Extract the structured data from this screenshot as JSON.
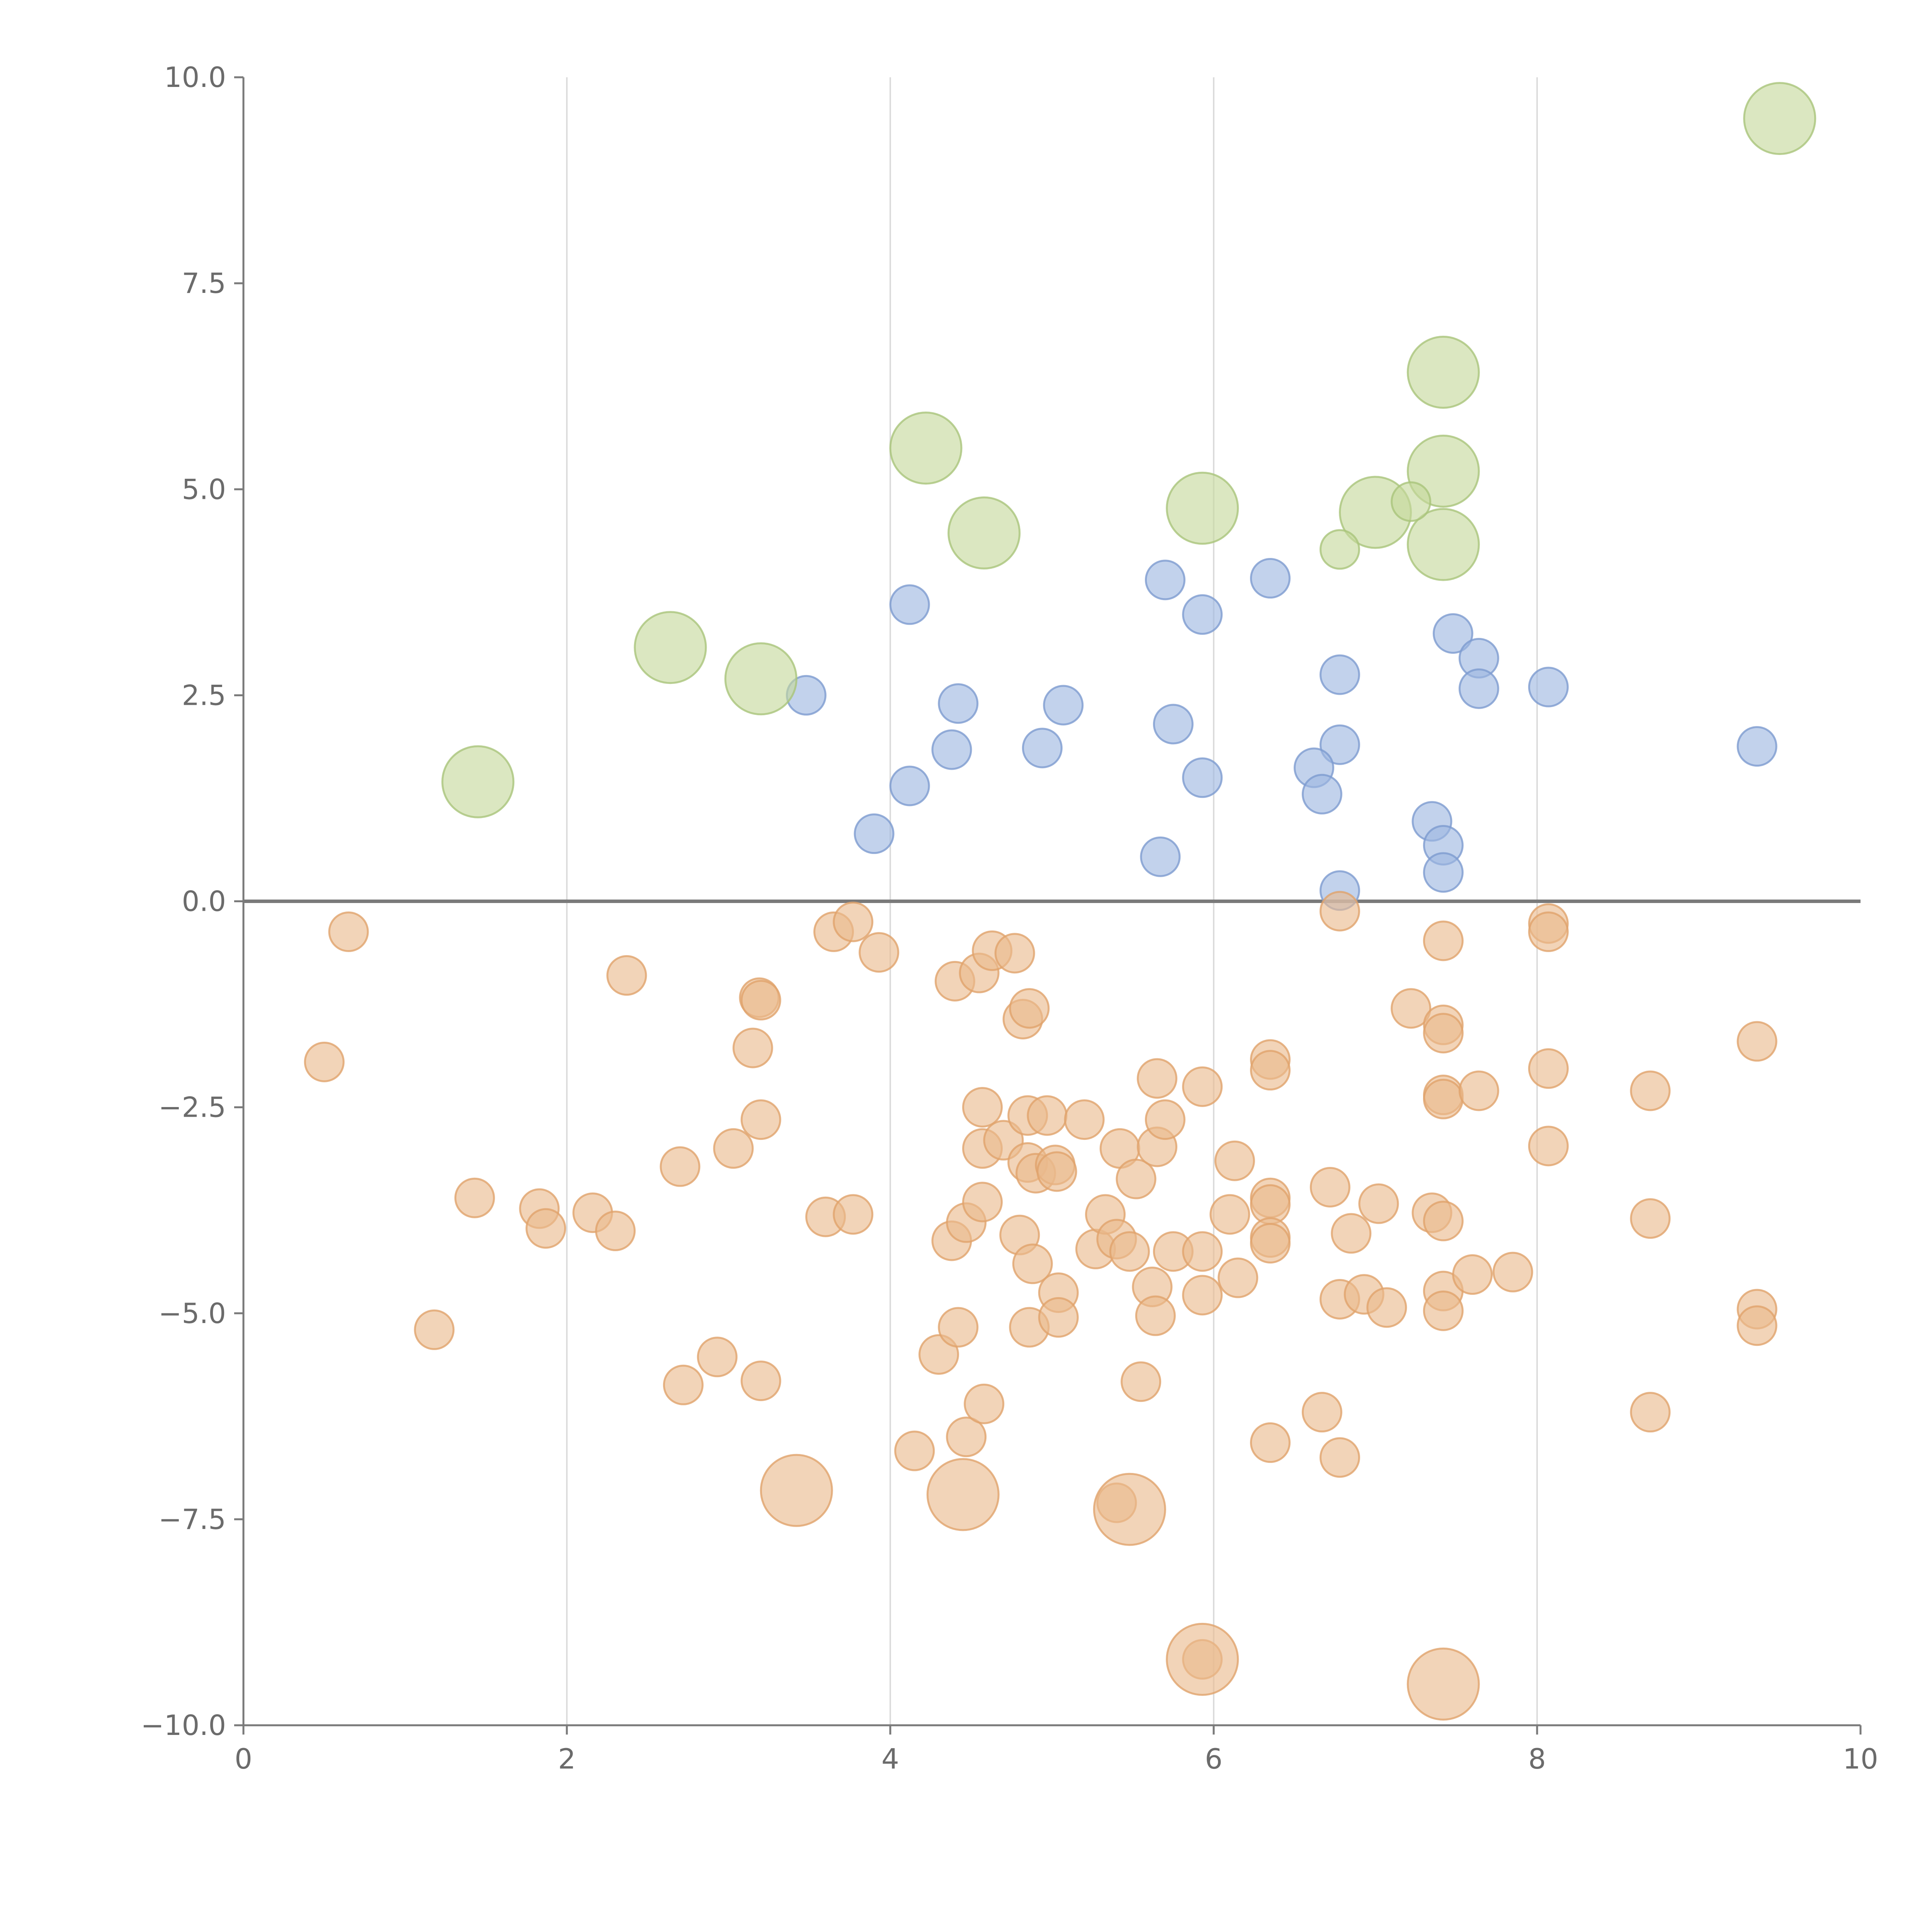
{
  "chart_data": {
    "type": "scatter",
    "title": "",
    "xlabel": "",
    "ylabel": "",
    "xlim": [
      0,
      10
    ],
    "ylim": [
      -10,
      10
    ],
    "x_ticks": [
      "0",
      "2",
      "4",
      "6",
      "8",
      "10"
    ],
    "y_ticks": [
      "−10.0",
      "−7.5",
      "−5.0",
      "−2.5",
      "0.0",
      "2.5",
      "5.0",
      "7.5",
      "10.0"
    ],
    "x_gridlines": [
      2,
      4,
      6,
      8
    ],
    "reference_line_y": 0,
    "legend": "none",
    "series": [
      {
        "color": "#9db7e0",
        "stroke": "#7d9bcf",
        "size": "small",
        "points": [
          [
            3.48,
            2.5
          ],
          [
            4.12,
            3.6
          ],
          [
            4.42,
            2.4
          ],
          [
            4.38,
            1.84
          ],
          [
            4.12,
            1.4
          ],
          [
            3.9,
            0.82
          ],
          [
            5.07,
            2.38
          ],
          [
            4.94,
            1.86
          ],
          [
            5.7,
            3.9
          ],
          [
            5.93,
            3.48
          ],
          [
            6.35,
            3.92
          ],
          [
            5.75,
            2.15
          ],
          [
            5.93,
            1.5
          ],
          [
            5.67,
            0.54
          ],
          [
            6.78,
            2.75
          ],
          [
            6.78,
            1.9
          ],
          [
            6.62,
            1.62
          ],
          [
            6.67,
            1.3
          ],
          [
            6.78,
            0.13
          ],
          [
            7.48,
            3.25
          ],
          [
            7.64,
            2.95
          ],
          [
            7.64,
            2.58
          ],
          [
            8.07,
            2.6
          ],
          [
            7.35,
            0.97
          ],
          [
            7.42,
            0.68
          ],
          [
            7.42,
            0.35
          ],
          [
            9.36,
            1.88
          ]
        ]
      },
      {
        "color": "#c5d99b",
        "stroke": "#a9c47a",
        "size": "large",
        "points": [
          [
            1.45,
            1.45
          ],
          [
            2.64,
            3.08
          ],
          [
            3.2,
            2.7
          ],
          [
            4.22,
            5.5
          ],
          [
            4.58,
            4.47
          ],
          [
            5.93,
            4.77
          ],
          [
            7.0,
            4.72
          ],
          [
            7.42,
            6.42
          ],
          [
            7.42,
            5.22
          ],
          [
            7.42,
            4.33
          ],
          [
            9.5,
            9.5
          ]
        ]
      },
      {
        "color": "#c5d99b",
        "stroke": "#a9c47a",
        "size": "small",
        "points": [
          [
            6.78,
            4.27
          ],
          [
            7.22,
            4.85
          ]
        ]
      },
      {
        "color": "#eab98d",
        "stroke": "#e0a26c",
        "size": "small",
        "points": [
          [
            0.65,
            -0.37
          ],
          [
            0.5,
            -1.95
          ],
          [
            1.18,
            -5.2
          ],
          [
            1.43,
            -3.6
          ],
          [
            1.83,
            -3.73
          ],
          [
            1.87,
            -3.97
          ],
          [
            2.16,
            -3.78
          ],
          [
            2.3,
            -4.0
          ],
          [
            2.37,
            -0.9
          ],
          [
            2.7,
            -3.22
          ],
          [
            2.72,
            -5.87
          ],
          [
            2.93,
            -5.53
          ],
          [
            3.03,
            -3.0
          ],
          [
            3.15,
            -1.78
          ],
          [
            3.19,
            -1.17
          ],
          [
            3.2,
            -1.2
          ],
          [
            3.2,
            -2.65
          ],
          [
            3.2,
            -5.82
          ],
          [
            3.6,
            -3.83
          ],
          [
            3.65,
            -0.37
          ],
          [
            3.77,
            -0.25
          ],
          [
            3.77,
            -3.8
          ],
          [
            3.93,
            -0.62
          ],
          [
            4.15,
            -6.67
          ],
          [
            4.3,
            -5.5
          ],
          [
            4.38,
            -4.12
          ],
          [
            4.4,
            -0.97
          ],
          [
            4.42,
            -5.17
          ],
          [
            4.47,
            -3.9
          ],
          [
            4.47,
            -6.5
          ],
          [
            4.55,
            -0.87
          ],
          [
            4.57,
            -2.5
          ],
          [
            4.57,
            -3.0
          ],
          [
            4.57,
            -3.65
          ],
          [
            4.58,
            -6.1
          ],
          [
            4.63,
            -0.6
          ],
          [
            4.7,
            -2.9
          ],
          [
            4.77,
            -0.63
          ],
          [
            4.8,
            -4.05
          ],
          [
            4.82,
            -1.43
          ],
          [
            4.85,
            -2.6
          ],
          [
            4.85,
            -3.17
          ],
          [
            4.86,
            -1.3
          ],
          [
            4.86,
            -5.17
          ],
          [
            4.88,
            -4.4
          ],
          [
            4.9,
            -3.3
          ],
          [
            4.97,
            -2.6
          ],
          [
            5.02,
            -3.2
          ],
          [
            5.03,
            -3.28
          ],
          [
            5.04,
            -4.75
          ],
          [
            5.04,
            -5.05
          ],
          [
            5.2,
            -2.65
          ],
          [
            5.27,
            -4.22
          ],
          [
            5.33,
            -3.8
          ],
          [
            5.4,
            -4.1
          ],
          [
            5.42,
            -3.0
          ],
          [
            5.48,
            -4.25
          ],
          [
            5.52,
            -3.37
          ],
          [
            5.55,
            -5.83
          ],
          [
            5.62,
            -4.68
          ],
          [
            5.65,
            -2.15
          ],
          [
            5.64,
            -5.03
          ],
          [
            5.65,
            -2.98
          ],
          [
            5.7,
            -2.65
          ],
          [
            5.75,
            -4.25
          ],
          [
            5.93,
            -2.25
          ],
          [
            5.93,
            -4.25
          ],
          [
            5.93,
            -4.78
          ],
          [
            6.1,
            -3.8
          ],
          [
            6.13,
            -3.15
          ],
          [
            6.15,
            -4.57
          ],
          [
            6.35,
            -1.92
          ],
          [
            6.35,
            -2.05
          ],
          [
            6.35,
            -3.6
          ],
          [
            6.35,
            -3.68
          ],
          [
            6.35,
            -4.08
          ],
          [
            6.35,
            -4.15
          ],
          [
            6.35,
            -6.57
          ],
          [
            6.67,
            -6.2
          ],
          [
            6.72,
            -3.47
          ],
          [
            6.78,
            -0.12
          ],
          [
            6.78,
            -4.83
          ],
          [
            6.78,
            -6.75
          ],
          [
            6.85,
            -4.03
          ],
          [
            6.93,
            -4.77
          ],
          [
            7.02,
            -3.67
          ],
          [
            7.07,
            -4.93
          ],
          [
            7.22,
            -1.3
          ],
          [
            7.35,
            -3.78
          ],
          [
            7.42,
            -0.48
          ],
          [
            7.42,
            -1.5
          ],
          [
            7.42,
            -1.6
          ],
          [
            7.42,
            -2.35
          ],
          [
            7.42,
            -2.4
          ],
          [
            7.42,
            -3.88
          ],
          [
            7.42,
            -4.73
          ],
          [
            7.42,
            -4.97
          ],
          [
            7.64,
            -2.3
          ],
          [
            7.6,
            -4.53
          ],
          [
            7.85,
            -4.5
          ],
          [
            8.07,
            -0.27
          ],
          [
            8.07,
            -0.37
          ],
          [
            8.07,
            -2.03
          ],
          [
            8.07,
            -2.97
          ],
          [
            8.7,
            -2.3
          ],
          [
            8.7,
            -3.85
          ],
          [
            8.7,
            -6.2
          ],
          [
            9.36,
            -1.7
          ],
          [
            9.36,
            -4.95
          ],
          [
            9.36,
            -5.15
          ],
          [
            5.4,
            -7.3
          ],
          [
            5.93,
            -9.2
          ]
        ]
      },
      {
        "color": "#eab98d",
        "stroke": "#e0a26c",
        "size": "large",
        "points": [
          [
            3.42,
            -7.15
          ],
          [
            4.45,
            -7.2
          ],
          [
            5.48,
            -7.38
          ],
          [
            5.93,
            -9.2
          ],
          [
            7.42,
            -9.5
          ]
        ]
      }
    ]
  }
}
